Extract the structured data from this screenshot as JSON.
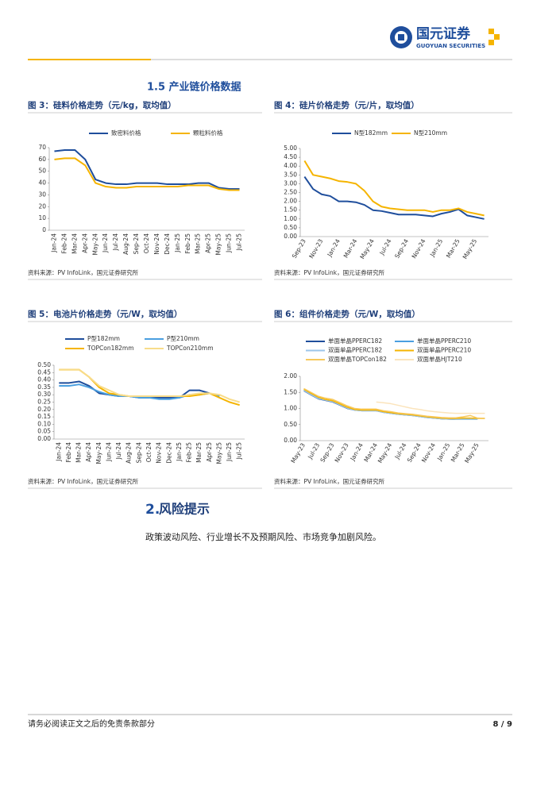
{
  "header": {
    "brand": "国元证券",
    "brand_en": "GUOYUAN SECURITIES"
  },
  "section_title": "1.5 产业链价格数据",
  "chart_data": [
    {
      "type": "line",
      "title": "图 3：硅料价格走势（元/kg，取均值）",
      "source": "资料来源：PV InfoLink，国元证券研究所",
      "categories": [
        "Jan-24",
        "Feb-24",
        "Mar-24",
        "Apr-24",
        "May-24",
        "Jun-24",
        "Jul-24",
        "Aug-24",
        "Sep-24",
        "Oct-24",
        "Nov-24",
        "Dec-24",
        "Jan-25",
        "Feb-25",
        "Mar-25",
        "Apr-25",
        "May-25",
        "Jun-25",
        "Jul-25"
      ],
      "series": [
        {
          "name": "致密料价格",
          "color": "#1f4e9c",
          "values": [
            67,
            68,
            68,
            60,
            43,
            40,
            39,
            39,
            40,
            40,
            40,
            39,
            39,
            39,
            40,
            40,
            36,
            35,
            35
          ]
        },
        {
          "name": "颗粒料价格",
          "color": "#f5b400",
          "values": [
            60,
            61,
            61,
            55,
            40,
            37,
            36,
            36,
            37,
            37,
            37,
            37,
            37,
            38,
            38,
            38,
            35,
            34,
            34
          ]
        }
      ],
      "ylim": [
        0,
        70
      ],
      "yticks": [
        0,
        10,
        20,
        30,
        40,
        50,
        60,
        70
      ]
    },
    {
      "type": "line",
      "title": "图 4：硅片价格走势（元/片，取均值）",
      "source": "资料来源：PV InfoLink，国元证券研究所",
      "categories": [
        "Sep-23",
        null,
        "Nov-23",
        null,
        "Jan-24",
        null,
        "Mar-24",
        null,
        "May-24",
        null,
        "Jul-24",
        null,
        "Sep-24",
        null,
        "Nov-24",
        null,
        "Jan-25",
        null,
        "Mar-25",
        null,
        "May-25",
        null
      ],
      "series": [
        {
          "name": "N型182mm",
          "color": "#1f4e9c",
          "values": [
            3.4,
            2.7,
            2.4,
            2.3,
            2.0,
            2.0,
            1.95,
            1.8,
            1.5,
            1.45,
            1.35,
            1.25,
            1.25,
            1.25,
            1.2,
            1.15,
            1.3,
            1.4,
            1.55,
            1.2,
            1.1,
            1.0
          ]
        },
        {
          "name": "N型210mm",
          "color": "#f5b400",
          "values": [
            4.3,
            3.5,
            3.4,
            3.3,
            3.15,
            3.1,
            3.0,
            2.6,
            2.0,
            1.7,
            1.6,
            1.55,
            1.5,
            1.5,
            1.5,
            1.4,
            1.5,
            1.5,
            1.6,
            1.4,
            1.3,
            1.2
          ]
        }
      ],
      "ylim": [
        0,
        5
      ],
      "yticks": [
        {
          "value": 0,
          "label": "0.00"
        },
        {
          "value": 0.5,
          "label": "0.50"
        },
        {
          "value": 1,
          "label": "1.00"
        },
        {
          "value": 1.5,
          "label": "1.50"
        },
        {
          "value": 2,
          "label": "2.00"
        },
        {
          "value": 2.5,
          "label": "2.50"
        },
        {
          "value": 3,
          "label": "3.00"
        },
        {
          "value": 3.5,
          "label": "3.50"
        },
        {
          "value": 4,
          "label": "4.00"
        },
        {
          "value": 4.5,
          "label": "4.50"
        },
        {
          "value": 5,
          "label": "5.00"
        }
      ]
    },
    {
      "type": "line",
      "title": "图 5：电池片价格走势（元/W，取均值）",
      "source": "资料来源：PV InfoLink，国元证券研究所",
      "categories": [
        "Jan-24",
        "Feb-24",
        "Mar-24",
        "Apr-24",
        "May-24",
        "Jun-24",
        "Jul-24",
        "Aug-24",
        "Sep-24",
        "Oct-24",
        "Nov-24",
        "Dec-24",
        "Jan-25",
        "Feb-25",
        "Mar-25",
        "Apr-25",
        "May-25",
        "Jun-25",
        "Jul-25"
      ],
      "series": [
        {
          "name": "P型182mm",
          "color": "#1f4e9c",
          "values": [
            0.38,
            0.38,
            0.39,
            0.36,
            0.31,
            0.3,
            0.29,
            0.29,
            0.28,
            0.28,
            0.28,
            0.28,
            0.28,
            0.33,
            0.33,
            0.31,
            null,
            null,
            null
          ]
        },
        {
          "name": "P型210mm",
          "color": "#4a9fe0",
          "values": [
            0.36,
            0.36,
            0.37,
            0.35,
            0.32,
            0.3,
            0.29,
            0.29,
            0.28,
            0.28,
            0.27,
            0.27,
            0.28,
            0.3,
            0.3,
            0.31,
            0.29,
            null,
            null
          ]
        },
        {
          "name": "TOPCon182mm",
          "color": "#f5b400",
          "values": [
            0.47,
            0.47,
            0.47,
            0.42,
            0.35,
            0.31,
            0.3,
            0.29,
            0.29,
            0.29,
            0.29,
            0.29,
            0.29,
            0.29,
            0.3,
            0.31,
            0.28,
            0.25,
            0.23
          ]
        },
        {
          "name": "TOPCon210mm",
          "color": "#f8dc8a",
          "values": [
            0.47,
            0.47,
            0.47,
            0.42,
            0.36,
            0.33,
            0.3,
            0.29,
            0.29,
            0.29,
            0.29,
            0.29,
            0.29,
            0.3,
            0.31,
            0.31,
            0.3,
            0.27,
            0.25
          ]
        }
      ],
      "ylim": [
        0,
        0.5
      ],
      "yticks": [
        {
          "value": 0,
          "label": "0.00"
        },
        {
          "value": 0.05,
          "label": "0.05"
        },
        {
          "value": 0.1,
          "label": "0.10"
        },
        {
          "value": 0.15,
          "label": "0.15"
        },
        {
          "value": 0.2,
          "label": "0.20"
        },
        {
          "value": 0.25,
          "label": "0.25"
        },
        {
          "value": 0.3,
          "label": "0.30"
        },
        {
          "value": 0.35,
          "label": "0.35"
        },
        {
          "value": 0.4,
          "label": "0.40"
        },
        {
          "value": 0.45,
          "label": "0.45"
        },
        {
          "value": 0.5,
          "label": "0.50"
        }
      ]
    },
    {
      "type": "line",
      "title": "图 6：组件价格走势（元/W，取均值）",
      "source": "资料来源：PV InfoLink，国元证券研究所",
      "categories": [
        "May-23",
        null,
        "Jul-23",
        null,
        "Sep-23",
        null,
        "Nov-23",
        null,
        "Jan-24",
        null,
        "Mar-24",
        null,
        "May-24",
        null,
        "Jul-24",
        null,
        "Sep-24",
        null,
        "Nov-24",
        null,
        "Jan-25",
        null,
        "Mar-25",
        null,
        "May-25",
        null
      ],
      "series": [
        {
          "name": "单面单晶PPERC182",
          "color": "#1f4e9c",
          "values": [
            1.55,
            1.42,
            1.3,
            1.25,
            1.2,
            1.1,
            1.0,
            0.95,
            0.93,
            0.93,
            0.93,
            0.88,
            0.85,
            0.82,
            0.8,
            0.78,
            0.75,
            0.72,
            0.7,
            0.68,
            0.67,
            0.66,
            0.66,
            0.66,
            null,
            null
          ]
        },
        {
          "name": "单面单晶PPERC210",
          "color": "#4a9fe0",
          "values": [
            1.57,
            1.44,
            1.32,
            1.27,
            1.22,
            1.12,
            1.02,
            0.96,
            0.94,
            0.94,
            0.94,
            0.89,
            0.86,
            0.83,
            0.81,
            0.79,
            0.76,
            0.73,
            0.71,
            0.69,
            0.68,
            0.67,
            0.67,
            0.67,
            null,
            null
          ]
        },
        {
          "name": "双面单晶PPERC182",
          "color": "#9cc6ea",
          "values": [
            1.56,
            1.43,
            1.31,
            1.26,
            1.21,
            1.11,
            1.01,
            0.95,
            0.93,
            0.93,
            0.93,
            0.88,
            0.85,
            0.82,
            0.8,
            0.78,
            0.75,
            0.72,
            0.7,
            0.68,
            0.67,
            0.66,
            0.66,
            0.66,
            0.66,
            null
          ]
        },
        {
          "name": "双面单晶PPERC210",
          "color": "#f5b400",
          "values": [
            1.6,
            1.47,
            1.35,
            1.28,
            1.24,
            1.14,
            1.04,
            0.97,
            0.95,
            0.95,
            0.95,
            0.9,
            0.87,
            0.84,
            0.82,
            0.8,
            0.77,
            0.74,
            0.72,
            0.7,
            0.69,
            0.69,
            0.7,
            0.7,
            0.69,
            0.69
          ]
        },
        {
          "name": "双面单晶TOPCon182",
          "color": "#f7c85c",
          "values": [
            1.62,
            1.5,
            1.38,
            1.32,
            1.28,
            1.18,
            1.08,
            1.0,
            0.98,
            0.98,
            0.98,
            0.93,
            0.9,
            0.86,
            0.84,
            0.82,
            0.79,
            0.76,
            0.74,
            0.72,
            0.71,
            0.71,
            0.74,
            0.78,
            0.7,
            0.69
          ]
        },
        {
          "name": "双面单晶HJT210",
          "color": "#fbe4bc",
          "values": [
            null,
            null,
            null,
            null,
            null,
            null,
            null,
            null,
            null,
            null,
            1.2,
            1.18,
            1.15,
            1.1,
            1.05,
            1.0,
            0.97,
            0.93,
            0.9,
            0.88,
            0.86,
            0.85,
            0.85,
            0.85,
            0.85,
            0.85
          ]
        }
      ],
      "ylim": [
        0,
        2
      ],
      "yticks": [
        {
          "value": 0,
          "label": "0.00"
        },
        {
          "value": 0.5,
          "label": "0.50"
        },
        {
          "value": 1,
          "label": "1.00"
        },
        {
          "value": 1.5,
          "label": "1.50"
        },
        {
          "value": 2,
          "label": "2.00"
        }
      ]
    }
  ],
  "risk_title_num": "2.",
  "risk_title": "风险提示",
  "risk_text": "政策波动风险、行业增长不及预期风险、市场竞争加剧风险。",
  "footer": {
    "disclaimer": "请务必阅读正文之后的免责条款部分",
    "page": "8 / 9"
  }
}
